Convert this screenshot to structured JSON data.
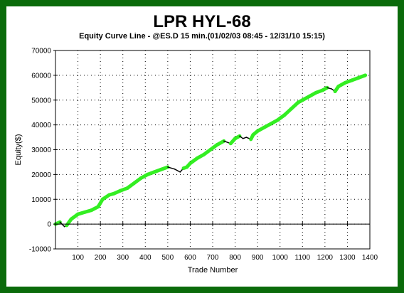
{
  "chart_data": {
    "type": "line",
    "title": "LPR HYL-68",
    "subtitle": "Equity Curve Line - @ES.D 15 min.(01/02/03 08:45 - 12/31/10 15:15)",
    "xlabel": "Trade Number",
    "ylabel": "Equity($)",
    "xlim": [
      0,
      1400
    ],
    "ylim": [
      -10000,
      70000
    ],
    "x_ticks": [
      100,
      200,
      300,
      400,
      500,
      600,
      700,
      800,
      900,
      1000,
      1100,
      1200,
      1300,
      1400
    ],
    "y_ticks": [
      -10000,
      0,
      10000,
      20000,
      30000,
      40000,
      50000,
      60000,
      70000
    ],
    "x_tick_labels": [
      "100",
      "200",
      "300",
      "400",
      "500",
      "600",
      "700",
      "800",
      "900",
      "1000",
      "1100",
      "1200",
      "1300",
      "1400"
    ],
    "y_tick_labels": [
      "-10000",
      "0",
      "10000",
      "20000",
      "30000",
      "40000",
      "50000",
      "60000",
      "70000"
    ],
    "grid": true,
    "colors": {
      "new_high": "#33ee22",
      "drawdown": "#000000",
      "frame": "#0b6b0b"
    },
    "series": [
      {
        "x": [
          0,
          20,
          40,
          50,
          70,
          100,
          130,
          160,
          190,
          210,
          240,
          260,
          290,
          320,
          350,
          380,
          410,
          440,
          470,
          500,
          530,
          555,
          570,
          585,
          600,
          630,
          660,
          690,
          720,
          750,
          780,
          800,
          820,
          835,
          850,
          870,
          880,
          900,
          930,
          960,
          990,
          1020,
          1050,
          1080,
          1100,
          1130,
          1160,
          1190,
          1210,
          1230,
          1245,
          1260,
          1290,
          1320,
          1350,
          1380
        ],
        "y": [
          0,
          800,
          -1000,
          -500,
          2000,
          4000,
          4800,
          5600,
          7000,
          10000,
          11800,
          12300,
          13500,
          14500,
          16500,
          18500,
          20000,
          21000,
          22000,
          23000,
          22200,
          21000,
          22500,
          23000,
          24500,
          26500,
          28000,
          30000,
          32000,
          33500,
          32500,
          34500,
          35500,
          34500,
          35000,
          34200,
          36000,
          37500,
          39000,
          40500,
          42000,
          44000,
          46500,
          49000,
          50000,
          51500,
          53000,
          54000,
          55000,
          54500,
          53500,
          55500,
          57000,
          58000,
          59000,
          60000
        ]
      }
    ]
  }
}
